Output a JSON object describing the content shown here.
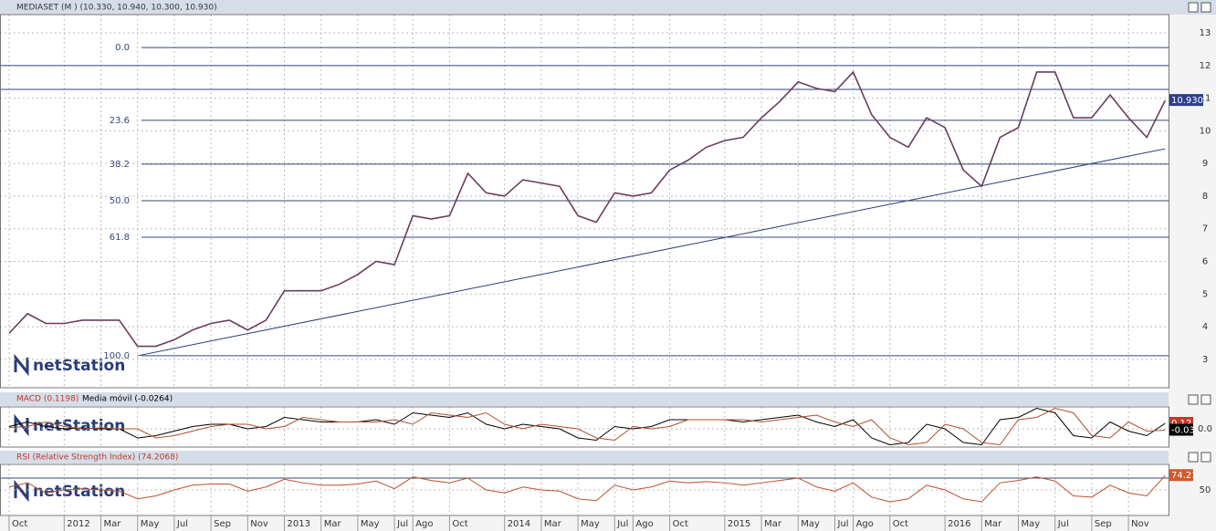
{
  "logo": "netStation",
  "chart_data": [
    {
      "type": "line",
      "title": "MEDIASET (M ) (10.330, 10.940, 10.300, 10.930)",
      "color": "#6b3d5e",
      "grid": true,
      "categories": [
        "Oct",
        null,
        null,
        "2012",
        null,
        "Mar",
        null,
        "May",
        null,
        "Jul",
        null,
        "Sep",
        null,
        "Nov",
        null,
        "2013",
        null,
        "Mar",
        null,
        "May",
        null,
        "Jul",
        "Ago",
        null,
        "Oct",
        null,
        null,
        "2014",
        null,
        "Mar",
        null,
        "May",
        null,
        "Jul",
        "Ago",
        null,
        "Oct",
        null,
        null,
        "2015",
        null,
        "Mar",
        null,
        "May",
        null,
        "Jul",
        "Ago",
        null,
        "Oct",
        null,
        null,
        "2016",
        null,
        "Mar",
        null,
        "May",
        null,
        "Jul",
        null,
        "Sep",
        null,
        "Nov",
        null,
        null
      ],
      "series": [
        {
          "name": "MEDIASET",
          "color": "#6b3d5e",
          "values": [
            3.8,
            4.4,
            4.1,
            4.1,
            4.2,
            4.2,
            4.2,
            3.4,
            3.4,
            3.6,
            3.9,
            4.1,
            4.2,
            3.9,
            4.2,
            5.1,
            5.1,
            5.1,
            5.3,
            5.6,
            6.0,
            5.9,
            7.4,
            7.3,
            7.4,
            8.7,
            8.1,
            8.0,
            8.5,
            8.4,
            8.3,
            7.4,
            7.2,
            8.1,
            8.0,
            8.1,
            8.8,
            9.1,
            9.5,
            9.7,
            9.8,
            10.4,
            10.9,
            11.5,
            11.3,
            11.2,
            11.8,
            10.5,
            9.8,
            9.5,
            10.4,
            10.1,
            8.8,
            8.3,
            9.8,
            10.1,
            11.8,
            11.8,
            10.4,
            10.4,
            11.1,
            10.4,
            9.8,
            10.93
          ],
          "value_labels": {
            "63": "10.930"
          }
        }
      ],
      "ylim": [
        2.13,
        13.56
      ],
      "yticks": [
        3,
        4,
        5,
        6,
        7,
        8,
        9,
        10,
        11,
        12,
        13
      ],
      "fibonacci": [
        {
          "label": "0.0",
          "value": 12.55
        },
        {
          "label": "23.6",
          "value": 10.32
        },
        {
          "label": "38.2",
          "value": 8.98
        },
        {
          "label": "50.0",
          "value": 7.86
        },
        {
          "label": "61.8",
          "value": 6.74
        },
        {
          "label": "100.0",
          "value": 3.11
        }
      ],
      "levels": [
        12.0,
        11.27
      ],
      "trendline": {
        "x": [
          7,
          63
        ],
        "y": [
          3.11,
          9.45
        ]
      }
    },
    {
      "type": "line",
      "title": "MACD (0.1198)",
      "subtitle": "Media móvil (-0.0264)",
      "grid": true,
      "series": [
        {
          "name": "MACD",
          "color": "#000000",
          "values": [
            0.05,
            0.15,
            0.05,
            0,
            0.02,
            0,
            0,
            -0.2,
            -0.15,
            -0.05,
            0.05,
            0.1,
            0.1,
            0,
            0.05,
            0.25,
            0.2,
            0.15,
            0.15,
            0.15,
            0.2,
            0.1,
            0.35,
            0.3,
            0.25,
            0.35,
            0.1,
            0,
            0.1,
            0.05,
            0,
            -0.2,
            -0.25,
            0.05,
            0,
            0.05,
            0.2,
            0.2,
            0.2,
            0.2,
            0.15,
            0.2,
            0.25,
            0.3,
            0.15,
            0.05,
            0.2,
            -0.2,
            -0.35,
            -0.3,
            0.1,
            0,
            -0.3,
            -0.35,
            0.2,
            0.25,
            0.45,
            0.35,
            -0.15,
            -0.2,
            0.15,
            -0.05,
            -0.15,
            0.12
          ]
        },
        {
          "name": "Media móvil",
          "color": "#b0502a",
          "values": [
            0.03,
            0.05,
            0.15,
            0.05,
            0,
            0.02,
            0,
            0,
            -0.2,
            -0.15,
            -0.05,
            0.05,
            0.1,
            0.1,
            0,
            0.05,
            0.25,
            0.2,
            0.15,
            0.15,
            0.15,
            0.2,
            0.1,
            0.35,
            0.3,
            0.25,
            0.35,
            0.1,
            0,
            0.1,
            0.05,
            0,
            -0.2,
            -0.25,
            0.05,
            0,
            0.05,
            0.2,
            0.2,
            0.2,
            0.2,
            0.15,
            0.2,
            0.25,
            0.3,
            0.15,
            0.05,
            0.2,
            -0.2,
            -0.35,
            -0.3,
            0.1,
            0,
            -0.3,
            -0.35,
            0.2,
            0.25,
            0.45,
            0.35,
            -0.15,
            -0.2,
            0.15,
            -0.05,
            -0.03
          ]
        }
      ],
      "ylim": [
        -0.4,
        0.48
      ],
      "yticks": [
        {
          "value": 0,
          "label": "0.0"
        }
      ]
    },
    {
      "type": "line",
      "title": "RSI (Relative Strength Index) (74.2068)",
      "grid": true,
      "series": [
        {
          "name": "RSI",
          "color": "#c0502b",
          "values": [
            55,
            62,
            45,
            50,
            52,
            50,
            48,
            35,
            40,
            50,
            58,
            60,
            60,
            48,
            55,
            68,
            62,
            58,
            58,
            60,
            65,
            52,
            72,
            66,
            62,
            70,
            50,
            45,
            55,
            50,
            48,
            35,
            32,
            58,
            50,
            55,
            65,
            62,
            64,
            62,
            58,
            62,
            66,
            70,
            55,
            48,
            62,
            38,
            30,
            35,
            58,
            50,
            35,
            30,
            62,
            66,
            72,
            65,
            40,
            38,
            58,
            45,
            40,
            74.21
          ]
        }
      ],
      "ylim": [
        7,
        93
      ],
      "yticks": [
        50
      ],
      "levels": [
        70
      ]
    }
  ]
}
